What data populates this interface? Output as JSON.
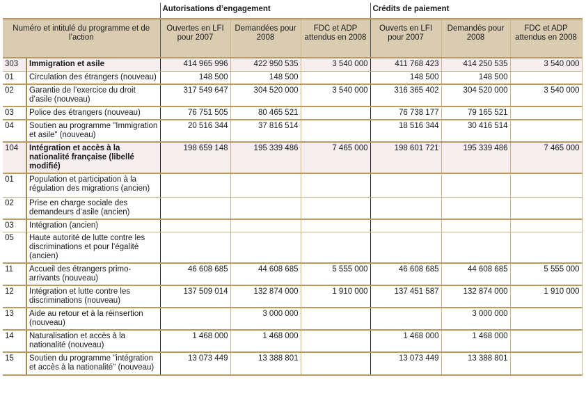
{
  "header": {
    "group_ae": "Autorisations d’engagement",
    "group_cp": "Crédits de paiement",
    "col_label": "Numéro et intitulé du programme et de l’action",
    "columns": [
      "Ouvertes en LFI pour 2007",
      "Demandées pour 2008",
      "FDC et ADP attendus en 2008",
      "Ouverts en LFI pour 2007",
      "Demandés pour 2008",
      "FDC et ADP attendus en 2008"
    ]
  },
  "rows": [
    {
      "code": "303",
      "label": "Immigration et asile",
      "program": true,
      "values": [
        "414 965 996",
        "422 950 535",
        "3 540 000",
        "411 768 423",
        "414 250 535",
        "3 540 000"
      ]
    },
    {
      "code": "01",
      "label": "Circulation des étrangers (nouveau)",
      "values": [
        "148 500",
        "148 500",
        "",
        "148 500",
        "148 500",
        ""
      ]
    },
    {
      "code": "02",
      "label": "Garantie de l’exercice du droit d’asile (nouveau)",
      "values": [
        "317 549 647",
        "304 520 000",
        "3 540 000",
        "316 365 402",
        "304 520 000",
        "3 540 000"
      ]
    },
    {
      "code": "03",
      "label": "Police des étrangers (nouveau)",
      "values": [
        "76 751 505",
        "80 465 521",
        "",
        "76 738 177",
        "79 165 521",
        ""
      ]
    },
    {
      "code": "04",
      "label": "Soutien au programme \"Immigration et asile\" (nouveau)",
      "values": [
        "20 516 344",
        "37 816 514",
        "",
        "18 516 344",
        "30 416 514",
        ""
      ]
    },
    {
      "code": "104",
      "label": "Intégration et accès à la nationalité française   (libellé modifié)",
      "program": true,
      "values": [
        "198 659 148",
        "195 339 486",
        "7 465 000",
        "198 601 721",
        "195 339 486",
        "7 465 000"
      ]
    },
    {
      "code": "01",
      "label": "Population et participation à la régulation des migrations  (ancien)",
      "values": [
        "",
        "",
        "",
        "",
        "",
        ""
      ]
    },
    {
      "code": "02",
      "label": "Prise en charge sociale des demandeurs d’asile  (ancien)",
      "values": [
        "",
        "",
        "",
        "",
        "",
        ""
      ]
    },
    {
      "code": "03",
      "label": "Intégration  (ancien)",
      "values": [
        "",
        "",
        "",
        "",
        "",
        ""
      ]
    },
    {
      "code": "05",
      "label": "Haute autorité de lutte contre les discriminations et pour l’égalité (ancien)",
      "values": [
        "",
        "",
        "",
        "",
        "",
        ""
      ]
    },
    {
      "code": "11",
      "label": "Accueil des étrangers primo-arrivants (nouveau)",
      "values": [
        "46 608 685",
        "44 608 685",
        "5 555 000",
        "46 608 685",
        "44 608 685",
        "5 555 000"
      ]
    },
    {
      "code": "12",
      "label": "Intégration et lutte contre les discriminations (nouveau)",
      "values": [
        "137 509 014",
        "132 874 000",
        "1 910 000",
        "137 451 587",
        "132 874 000",
        "1 910 000"
      ]
    },
    {
      "code": "13",
      "label": "Aide au retour et à la réinsertion (nouveau)",
      "values": [
        "",
        "3 000 000",
        "",
        "",
        "3 000 000",
        ""
      ]
    },
    {
      "code": "14",
      "label": "Naturalisation et accès à la nationalité (nouveau)",
      "values": [
        "1 468 000",
        "1 468 000",
        "",
        "1 468 000",
        "1 468 000",
        ""
      ]
    },
    {
      "code": "15",
      "label": "Soutien du programme \"intégration et accès à la nationalité\" (nouveau)",
      "values": [
        "13 073 449",
        "13 388 801",
        "",
        "13 073 449",
        "13 388 801",
        ""
      ]
    }
  ],
  "colors": {
    "header_bg": "#d9ccb1",
    "program_row_bg": "#f6eeee",
    "border": "#b89b62"
  }
}
